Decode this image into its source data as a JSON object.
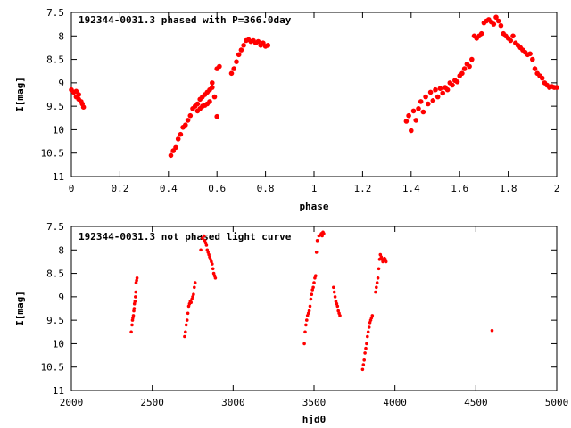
{
  "chart_data": [
    {
      "type": "scatter",
      "title": "192344-0031.3 phased with P=366.0day",
      "xlabel": "phase",
      "ylabel": "I[mag]",
      "xlim": [
        0,
        2
      ],
      "ylim": [
        7.5,
        11
      ],
      "y_inverted": true,
      "grid": false,
      "marker_color": "#ff0000",
      "xticks": [
        "0",
        "0.2",
        "0.4",
        "0.6",
        "0.8",
        "1",
        "1.2",
        "1.4",
        "1.6",
        "1.8",
        "2"
      ],
      "yticks": [
        "7.5",
        "8",
        "8.5",
        "9",
        "9.5",
        "10",
        "10.5",
        "11"
      ],
      "series": [
        {
          "x": [
            0.0,
            0.01,
            0.02,
            0.02,
            0.03,
            0.03,
            0.04,
            0.045,
            0.05,
            0.41,
            0.42,
            0.43,
            0.44,
            0.45,
            0.46,
            0.47,
            0.48,
            0.49,
            0.5,
            0.51,
            0.52,
            0.52,
            0.53,
            0.53,
            0.54,
            0.54,
            0.55,
            0.55,
            0.56,
            0.56,
            0.57,
            0.57,
            0.58,
            0.58,
            0.59,
            0.6,
            0.6,
            0.61,
            0.66,
            0.67,
            0.68,
            0.69,
            0.7,
            0.71,
            0.72,
            0.73,
            0.74,
            0.75,
            0.76,
            0.77,
            0.78,
            0.79,
            0.8,
            0.81,
            1.38,
            1.39,
            1.4,
            1.41,
            1.42,
            1.43,
            1.44,
            1.45,
            1.46,
            1.47,
            1.48,
            1.49,
            1.5,
            1.51,
            1.52,
            1.53,
            1.54,
            1.55,
            1.56,
            1.57,
            1.58,
            1.59,
            1.6,
            1.61,
            1.62,
            1.63,
            1.64,
            1.65,
            1.66,
            1.67,
            1.68,
            1.69,
            1.7,
            1.71,
            1.72,
            1.73,
            1.74,
            1.75,
            1.76,
            1.77,
            1.78,
            1.79,
            1.8,
            1.81,
            1.82,
            1.83,
            1.84,
            1.85,
            1.86,
            1.87,
            1.88,
            1.89,
            1.9,
            1.91,
            1.92,
            1.93,
            1.94,
            1.95,
            1.96,
            1.97,
            1.98,
            1.99,
            2.0
          ],
          "y": [
            9.15,
            9.2,
            9.18,
            9.3,
            9.25,
            9.35,
            9.4,
            9.45,
            9.52,
            10.55,
            10.45,
            10.38,
            10.2,
            10.1,
            9.95,
            9.9,
            9.8,
            9.7,
            9.55,
            9.5,
            9.45,
            9.6,
            9.35,
            9.55,
            9.3,
            9.5,
            9.25,
            9.48,
            9.2,
            9.45,
            9.15,
            9.4,
            9.1,
            9.0,
            9.3,
            9.72,
            8.7,
            8.65,
            8.8,
            8.7,
            8.55,
            8.4,
            8.3,
            8.2,
            8.1,
            8.08,
            8.12,
            8.1,
            8.15,
            8.12,
            8.2,
            8.15,
            8.22,
            8.2,
            9.82,
            9.7,
            10.02,
            9.6,
            9.8,
            9.55,
            9.4,
            9.62,
            9.3,
            9.45,
            9.2,
            9.38,
            9.15,
            9.3,
            9.12,
            9.22,
            9.1,
            9.15,
            9.0,
            9.05,
            8.95,
            8.98,
            8.85,
            8.8,
            8.7,
            8.6,
            8.65,
            8.5,
            8.0,
            8.05,
            8.0,
            7.95,
            7.72,
            7.68,
            7.65,
            7.7,
            7.75,
            7.6,
            7.68,
            7.78,
            7.95,
            8.0,
            8.05,
            8.1,
            8.0,
            8.15,
            8.2,
            8.25,
            8.3,
            8.35,
            8.4,
            8.38,
            8.5,
            8.7,
            8.8,
            8.85,
            8.9,
            9.0,
            9.05,
            9.1,
            9.08,
            9.1,
            9.1
          ]
        }
      ]
    },
    {
      "type": "scatter",
      "title": "192344-0031.3 not phased light curve",
      "xlabel": "hjd0",
      "ylabel": "I[mag]",
      "xlim": [
        2000,
        5000
      ],
      "ylim": [
        7.5,
        11
      ],
      "y_inverted": true,
      "grid": false,
      "marker_color": "#ff0000",
      "xticks": [
        "2000",
        "2500",
        "3000",
        "3500",
        "4000",
        "4500",
        "5000"
      ],
      "yticks": [
        "7.5",
        "8",
        "8.5",
        "9",
        "9.5",
        "10",
        "10.5",
        "11"
      ],
      "series": [
        {
          "x": [
            2370,
            2375,
            2378,
            2380,
            2383,
            2386,
            2388,
            2390,
            2393,
            2396,
            2398,
            2400,
            2403,
            2406,
            2700,
            2705,
            2710,
            2715,
            2720,
            2725,
            2730,
            2735,
            2740,
            2745,
            2750,
            2755,
            2760,
            2765,
            2800,
            2810,
            2820,
            2825,
            2830,
            2835,
            2840,
            2845,
            2850,
            2855,
            2860,
            2865,
            2870,
            2875,
            2880,
            2885,
            2890,
            3440,
            3445,
            3450,
            3455,
            3460,
            3465,
            3470,
            3475,
            3480,
            3485,
            3490,
            3495,
            3500,
            3505,
            3510,
            3515,
            3520,
            3530,
            3540,
            3545,
            3550,
            3555,
            3560,
            3620,
            3625,
            3630,
            3635,
            3640,
            3645,
            3650,
            3655,
            3660,
            3800,
            3805,
            3810,
            3815,
            3820,
            3825,
            3830,
            3835,
            3840,
            3845,
            3850,
            3855,
            3860,
            3880,
            3885,
            3890,
            3895,
            3900,
            3905,
            3910,
            3915,
            3920,
            3925,
            3930,
            3935,
            3940,
            3945,
            4600
          ],
          "y": [
            9.75,
            9.6,
            9.5,
            9.45,
            9.4,
            9.3,
            9.25,
            9.15,
            9.1,
            9.0,
            8.9,
            8.7,
            8.65,
            8.6,
            9.85,
            9.75,
            9.6,
            9.5,
            9.35,
            9.2,
            9.15,
            9.1,
            9.12,
            9.05,
            9.0,
            8.95,
            8.8,
            8.7,
            8.0,
            7.75,
            7.7,
            7.8,
            7.85,
            7.9,
            8.0,
            8.05,
            8.1,
            8.15,
            8.2,
            8.25,
            8.3,
            8.4,
            8.5,
            8.55,
            8.6,
            10.0,
            9.75,
            9.6,
            9.5,
            9.4,
            9.35,
            9.3,
            9.2,
            9.05,
            8.95,
            8.85,
            8.8,
            8.7,
            8.6,
            8.55,
            8.05,
            7.8,
            7.7,
            7.68,
            7.65,
            7.7,
            7.62,
            7.65,
            8.8,
            8.9,
            9.0,
            9.1,
            9.15,
            9.2,
            9.3,
            9.35,
            9.4,
            10.55,
            10.45,
            10.35,
            10.2,
            10.1,
            10.0,
            9.85,
            9.75,
            9.65,
            9.55,
            9.5,
            9.45,
            9.4,
            8.9,
            8.8,
            8.7,
            8.6,
            8.4,
            8.2,
            8.1,
            8.15,
            8.2,
            8.25,
            8.22,
            8.18,
            8.2,
            8.25,
            9.72
          ]
        }
      ]
    }
  ]
}
